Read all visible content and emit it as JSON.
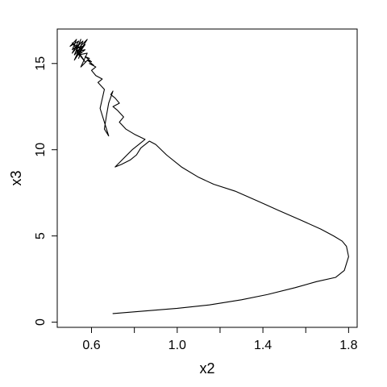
{
  "chart_data": {
    "type": "line",
    "title": "",
    "xlabel": "x2",
    "ylabel": "x3",
    "xlim": [
      0.44,
      1.84
    ],
    "ylim": [
      -0.3,
      17.0
    ],
    "xticks": [
      {
        "value": 0.6,
        "label": "0.6"
      },
      {
        "value": 0.8,
        "label": ""
      },
      {
        "value": 1.0,
        "label": "1.0"
      },
      {
        "value": 1.2,
        "label": ""
      },
      {
        "value": 1.4,
        "label": "1.4"
      },
      {
        "value": 1.6,
        "label": ""
      },
      {
        "value": 1.8,
        "label": "1.8"
      }
    ],
    "yticks": [
      {
        "value": 0,
        "label": "0"
      },
      {
        "value": 5,
        "label": "5"
      },
      {
        "value": 10,
        "label": "10"
      },
      {
        "value": 15,
        "label": "15"
      }
    ],
    "grid": false,
    "series": [
      {
        "color": "#000000",
        "x": [
          0.7,
          0.85,
          1.0,
          1.15,
          1.3,
          1.42,
          1.55,
          1.65,
          1.74,
          1.78,
          1.8,
          1.79,
          1.77,
          1.73,
          1.67,
          1.58,
          1.47,
          1.38,
          1.27,
          1.17,
          1.1,
          1.02,
          0.95,
          0.9,
          0.87,
          0.83,
          0.81,
          0.78,
          0.74,
          0.71,
          0.75,
          0.79,
          0.82,
          0.85,
          0.8,
          0.76,
          0.73,
          0.75,
          0.72,
          0.7,
          0.73,
          0.71,
          0.69,
          0.7,
          0.68,
          0.67,
          0.66,
          0.68,
          0.66,
          0.64,
          0.66,
          0.63,
          0.65,
          0.62,
          0.6,
          0.62,
          0.59,
          0.61,
          0.58,
          0.6,
          0.57,
          0.59,
          0.55,
          0.58,
          0.54,
          0.57,
          0.53,
          0.56,
          0.52,
          0.55,
          0.51,
          0.54,
          0.5,
          0.53,
          0.51,
          0.56,
          0.52,
          0.57,
          0.53,
          0.58,
          0.54,
          0.51,
          0.57,
          0.53,
          0.55,
          0.52,
          0.56,
          0.54
        ],
        "y": [
          0.5,
          0.65,
          0.8,
          1.0,
          1.3,
          1.6,
          2.0,
          2.35,
          2.6,
          3.0,
          3.8,
          4.4,
          4.7,
          5.0,
          5.4,
          5.9,
          6.5,
          7.0,
          7.6,
          8.0,
          8.4,
          9.0,
          9.7,
          10.3,
          10.5,
          10.1,
          9.7,
          9.4,
          9.15,
          9.0,
          9.5,
          10.0,
          10.3,
          10.6,
          10.9,
          11.2,
          11.6,
          11.9,
          12.3,
          12.5,
          12.7,
          13.0,
          13.2,
          13.4,
          12.7,
          12.0,
          11.2,
          10.8,
          11.6,
          12.4,
          13.5,
          13.9,
          14.1,
          14.3,
          14.6,
          14.8,
          15.0,
          14.9,
          15.2,
          15.1,
          15.4,
          15.3,
          14.8,
          15.6,
          15.5,
          15.8,
          15.7,
          16.0,
          15.9,
          16.2,
          15.6,
          16.3,
          16.0,
          16.4,
          15.8,
          16.3,
          15.2,
          16.1,
          15.4,
          16.4,
          15.9,
          16.2,
          15.1,
          15.7,
          16.4,
          15.5,
          16.0,
          15.3
        ]
      }
    ]
  }
}
